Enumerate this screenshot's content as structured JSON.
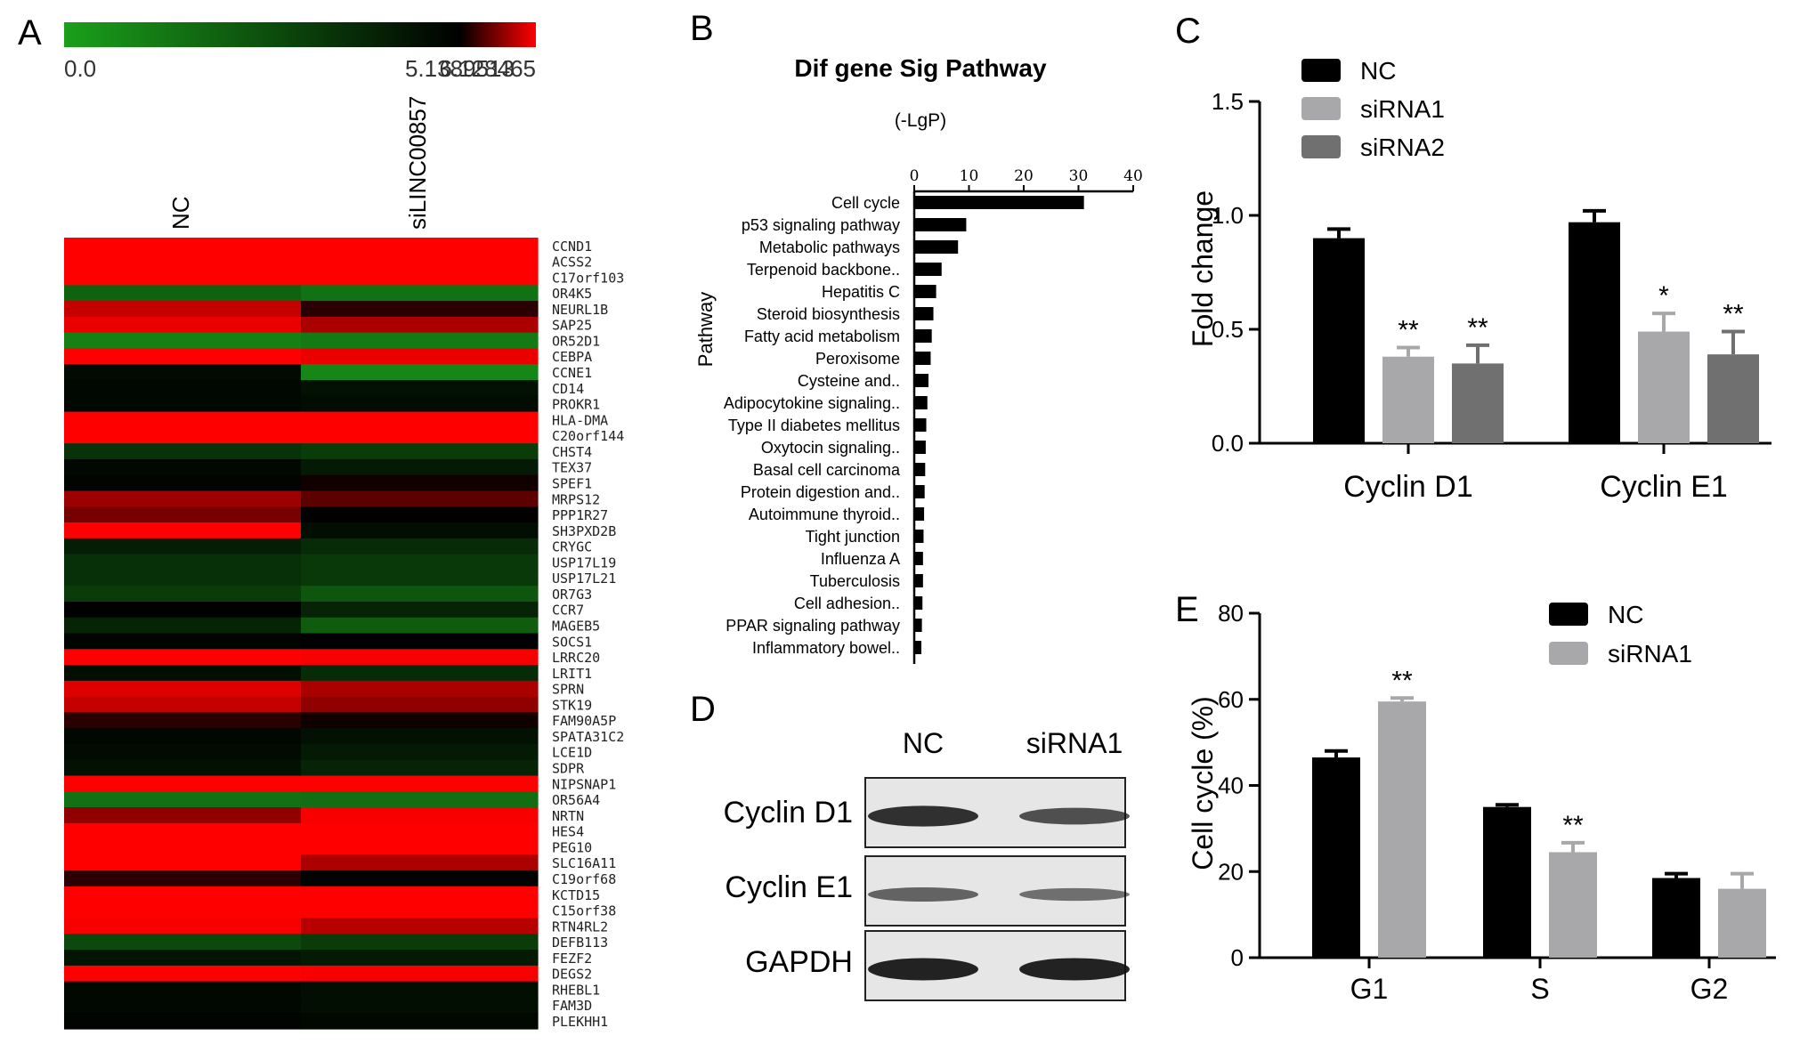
{
  "colors": {
    "low": "#1aa01a",
    "mid": "#000000",
    "high": "#ff0000",
    "nc": "#000000",
    "sirna1": "#a8a8aa",
    "sirna2": "#707070"
  },
  "chart_data": [
    {
      "panel": "A",
      "type": "heatmap",
      "colorscale_labels": [
        "0.0",
        "5.1389513",
        "6.128465"
      ],
      "colorscale_stops": [
        0.0,
        5.1389513,
        6.128465
      ],
      "columns": [
        "NC",
        "siLINC00857"
      ],
      "rows": [
        "CCND1",
        "ACSS2",
        "C17orf103",
        "OR4K5",
        "NEURL1B",
        "SAP25",
        "OR52D1",
        "CEBPA",
        "CCNE1",
        "CD14",
        "PROKR1",
        "HLA-DMA",
        "C20orf144",
        "CHST4",
        "TEX37",
        "SPEF1",
        "MRPS12",
        "PPP1R27",
        "SH3PXD2B",
        "CRYGC",
        "USP17L19",
        "USP17L21",
        "OR7G3",
        "CCR7",
        "MAGEB5",
        "SOCS1",
        "LRRC20",
        "LRIT1",
        "SPRN",
        "STK19",
        "FAM90A5P",
        "SPATA31C2",
        "LCE1D",
        "SDPR",
        "NIPSNAP1",
        "OR56A4",
        "NRTN",
        "HES4",
        "PEG10",
        "SLC16A11",
        "C19orf68",
        "KCTD15",
        "C15orf38",
        "RTN4RL2",
        "DEFB113",
        "FEZF2",
        "DEGS2",
        "RHEBL1",
        "FAM3D",
        "PLEKHH1"
      ],
      "values": [
        [
          6.13,
          6.13
        ],
        [
          6.13,
          6.13
        ],
        [
          6.13,
          6.13
        ],
        [
          2.0,
          1.5
        ],
        [
          5.9,
          5.3
        ],
        [
          6.05,
          5.8
        ],
        [
          1.0,
          1.2
        ],
        [
          6.13,
          6.05
        ],
        [
          4.8,
          0.8
        ],
        [
          4.9,
          4.6
        ],
        [
          4.9,
          4.75
        ],
        [
          6.13,
          6.13
        ],
        [
          6.13,
          6.13
        ],
        [
          3.5,
          3.2
        ],
        [
          4.9,
          4.3
        ],
        [
          5.0,
          5.2
        ],
        [
          5.75,
          5.5
        ],
        [
          5.6,
          5.15
        ],
        [
          6.13,
          4.7
        ],
        [
          4.2,
          3.8
        ],
        [
          3.6,
          3.3
        ],
        [
          3.6,
          3.3
        ],
        [
          3.2,
          2.4
        ],
        [
          5.1,
          4.0
        ],
        [
          4.0,
          2.2
        ],
        [
          5.0,
          5.1
        ],
        [
          6.13,
          6.1
        ],
        [
          4.7,
          3.8
        ],
        [
          6.0,
          5.8
        ],
        [
          5.9,
          5.7
        ],
        [
          5.3,
          5.2
        ],
        [
          4.9,
          4.6
        ],
        [
          4.8,
          4.3
        ],
        [
          4.6,
          4.0
        ],
        [
          6.13,
          6.13
        ],
        [
          1.5,
          1.6
        ],
        [
          5.7,
          6.1
        ],
        [
          6.13,
          6.13
        ],
        [
          6.13,
          6.13
        ],
        [
          6.13,
          5.8
        ],
        [
          5.3,
          5.0
        ],
        [
          6.13,
          6.13
        ],
        [
          6.13,
          6.13
        ],
        [
          6.1,
          5.85
        ],
        [
          2.8,
          3.2
        ],
        [
          4.5,
          4.3
        ],
        [
          6.13,
          6.1
        ],
        [
          4.9,
          4.7
        ],
        [
          4.9,
          4.7
        ],
        [
          5.0,
          4.9
        ]
      ]
    },
    {
      "panel": "B",
      "type": "bar",
      "title": "Dif gene Sig Pathway",
      "subtitle": "(-LgP)",
      "ylabel": "Pathway",
      "xlim": [
        0,
        40
      ],
      "xticks": [
        0,
        10,
        20,
        30,
        40
      ],
      "categories": [
        "Cell cycle",
        "p53 signaling pathway",
        "Metabolic pathways",
        "Terpenoid backbone..",
        "Hepatitis C",
        "Steroid biosynthesis",
        "Fatty acid metabolism",
        "Peroxisome",
        "Cysteine and..",
        "Adipocytokine signaling..",
        "Type II diabetes mellitus",
        "Oxytocin signaling..",
        "Basal cell carcinoma",
        "Protein digestion and..",
        "Autoimmune thyroid..",
        "Tight junction",
        "Influenza A",
        "Tuberculosis",
        "Cell adhesion..",
        "PPAR signaling pathway",
        "Inflammatory bowel.."
      ],
      "values": [
        31,
        9.5,
        8,
        5,
        4,
        3.5,
        3.2,
        3,
        2.6,
        2.4,
        2.2,
        2.1,
        2,
        1.9,
        1.8,
        1.7,
        1.6,
        1.6,
        1.5,
        1.4,
        1.3
      ]
    },
    {
      "panel": "C",
      "type": "bar",
      "ylabel": "Fold change",
      "ylim": [
        0,
        1.5
      ],
      "yticks": [
        "0.0",
        "0.5",
        "1.0",
        "1.5"
      ],
      "categories": [
        "Cyclin D1",
        "Cyclin E1"
      ],
      "legend_position": "top-left",
      "series": [
        {
          "name": "NC",
          "values": [
            0.9,
            0.97
          ],
          "errors": [
            0.04,
            0.05
          ],
          "sig": [
            "",
            ""
          ]
        },
        {
          "name": "siRNA1",
          "values": [
            0.38,
            0.49
          ],
          "errors": [
            0.04,
            0.08
          ],
          "sig": [
            "**",
            "*"
          ]
        },
        {
          "name": "siRNA2",
          "values": [
            0.35,
            0.39
          ],
          "errors": [
            0.08,
            0.1
          ],
          "sig": [
            "**",
            "**"
          ]
        }
      ]
    },
    {
      "panel": "E",
      "type": "bar",
      "ylabel": "Cell cycle (%)",
      "ylim": [
        0,
        80
      ],
      "yticks": [
        "0",
        "20",
        "40",
        "60",
        "80"
      ],
      "categories": [
        "G1",
        "S",
        "G2"
      ],
      "legend_position": "top-right",
      "series": [
        {
          "name": "NC",
          "values": [
            46.5,
            35,
            18.5
          ],
          "errors": [
            1.5,
            0.5,
            1.0
          ],
          "sig": [
            "",
            "",
            ""
          ]
        },
        {
          "name": "siRNA1",
          "values": [
            59.5,
            24.5,
            16
          ],
          "errors": [
            0.8,
            2.2,
            3.5
          ],
          "sig": [
            "**",
            "**",
            ""
          ]
        }
      ]
    }
  ],
  "blot": {
    "panel": "D",
    "columns": [
      "NC",
      "siRNA1"
    ],
    "rows": [
      "Cyclin D1",
      "Cyclin E1",
      "GAPDH"
    ],
    "intensity": [
      [
        0.85,
        0.6
      ],
      [
        0.45,
        0.35
      ],
      [
        0.95,
        0.95
      ]
    ]
  }
}
